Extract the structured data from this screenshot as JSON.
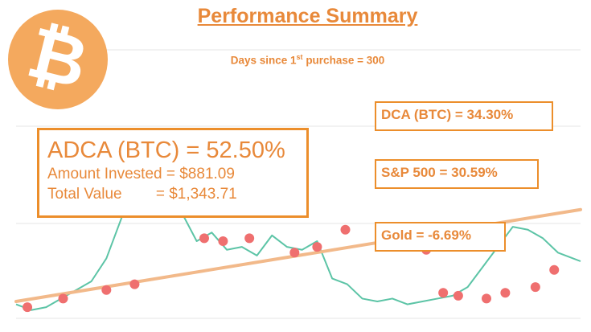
{
  "title": "Performance Summary",
  "subtitle": {
    "prefix": "Days since 1",
    "sup": "st",
    "suffix": " purchase = 300"
  },
  "logo": {
    "glyph": "₿",
    "icon": "bitcoin-icon",
    "color": "#f4a95e"
  },
  "adca_box": {
    "headline": "ADCA (BTC) = 52.50%",
    "amount_invested": "Amount Invested = $881.09",
    "total_value": "Total Value        = $1,343.71"
  },
  "returns": {
    "dca": "DCA (BTC) = 34.30%",
    "sp500": "S&P 500 = 30.59%",
    "gold": "Gold = -6.69%"
  },
  "colors": {
    "accent": "#e8893a",
    "price_line": "#5cc4a6",
    "trend_line": "#f2b98a",
    "purchase_marker": "#ef6f6f",
    "grid": "#e6e6e6"
  },
  "chart_data": {
    "type": "line",
    "title": "Performance Summary",
    "xlabel": "",
    "ylabel": "",
    "x_range": [
      0,
      300
    ],
    "y_range": [
      -20,
      400
    ],
    "grid": "horizontal",
    "legend": "none",
    "series": [
      {
        "type": "line",
        "x": [
          0,
          8,
          16,
          24,
          32,
          40,
          48,
          56,
          64,
          72,
          80,
          88,
          96,
          104,
          112,
          120,
          128,
          136,
          144,
          152,
          160,
          168,
          176,
          184,
          192,
          200,
          208,
          216,
          224,
          232,
          240,
          248,
          256,
          264,
          272,
          280,
          288,
          296,
          300
        ],
        "y": [
          10,
          0,
          5,
          20,
          35,
          50,
          90,
          160,
          240,
          280,
          250,
          170,
          120,
          135,
          105,
          110,
          95,
          130,
          110,
          105,
          120,
          55,
          45,
          20,
          15,
          20,
          10,
          15,
          20,
          25,
          40,
          75,
          110,
          145,
          140,
          125,
          100,
          90,
          85
        ]
      },
      {
        "type": "line",
        "x": [
          0,
          300
        ],
        "y": [
          15,
          175
        ]
      },
      {
        "type": "scatter",
        "x": [
          6,
          25,
          48,
          63,
          75,
          100,
          110,
          124,
          148,
          160,
          175,
          195,
          218,
          227,
          235,
          250,
          260,
          276,
          286
        ],
        "y": [
          5,
          20,
          35,
          45,
          300,
          125,
          120,
          125,
          100,
          110,
          140,
          115,
          105,
          30,
          25,
          20,
          30,
          40,
          70
        ]
      }
    ]
  }
}
